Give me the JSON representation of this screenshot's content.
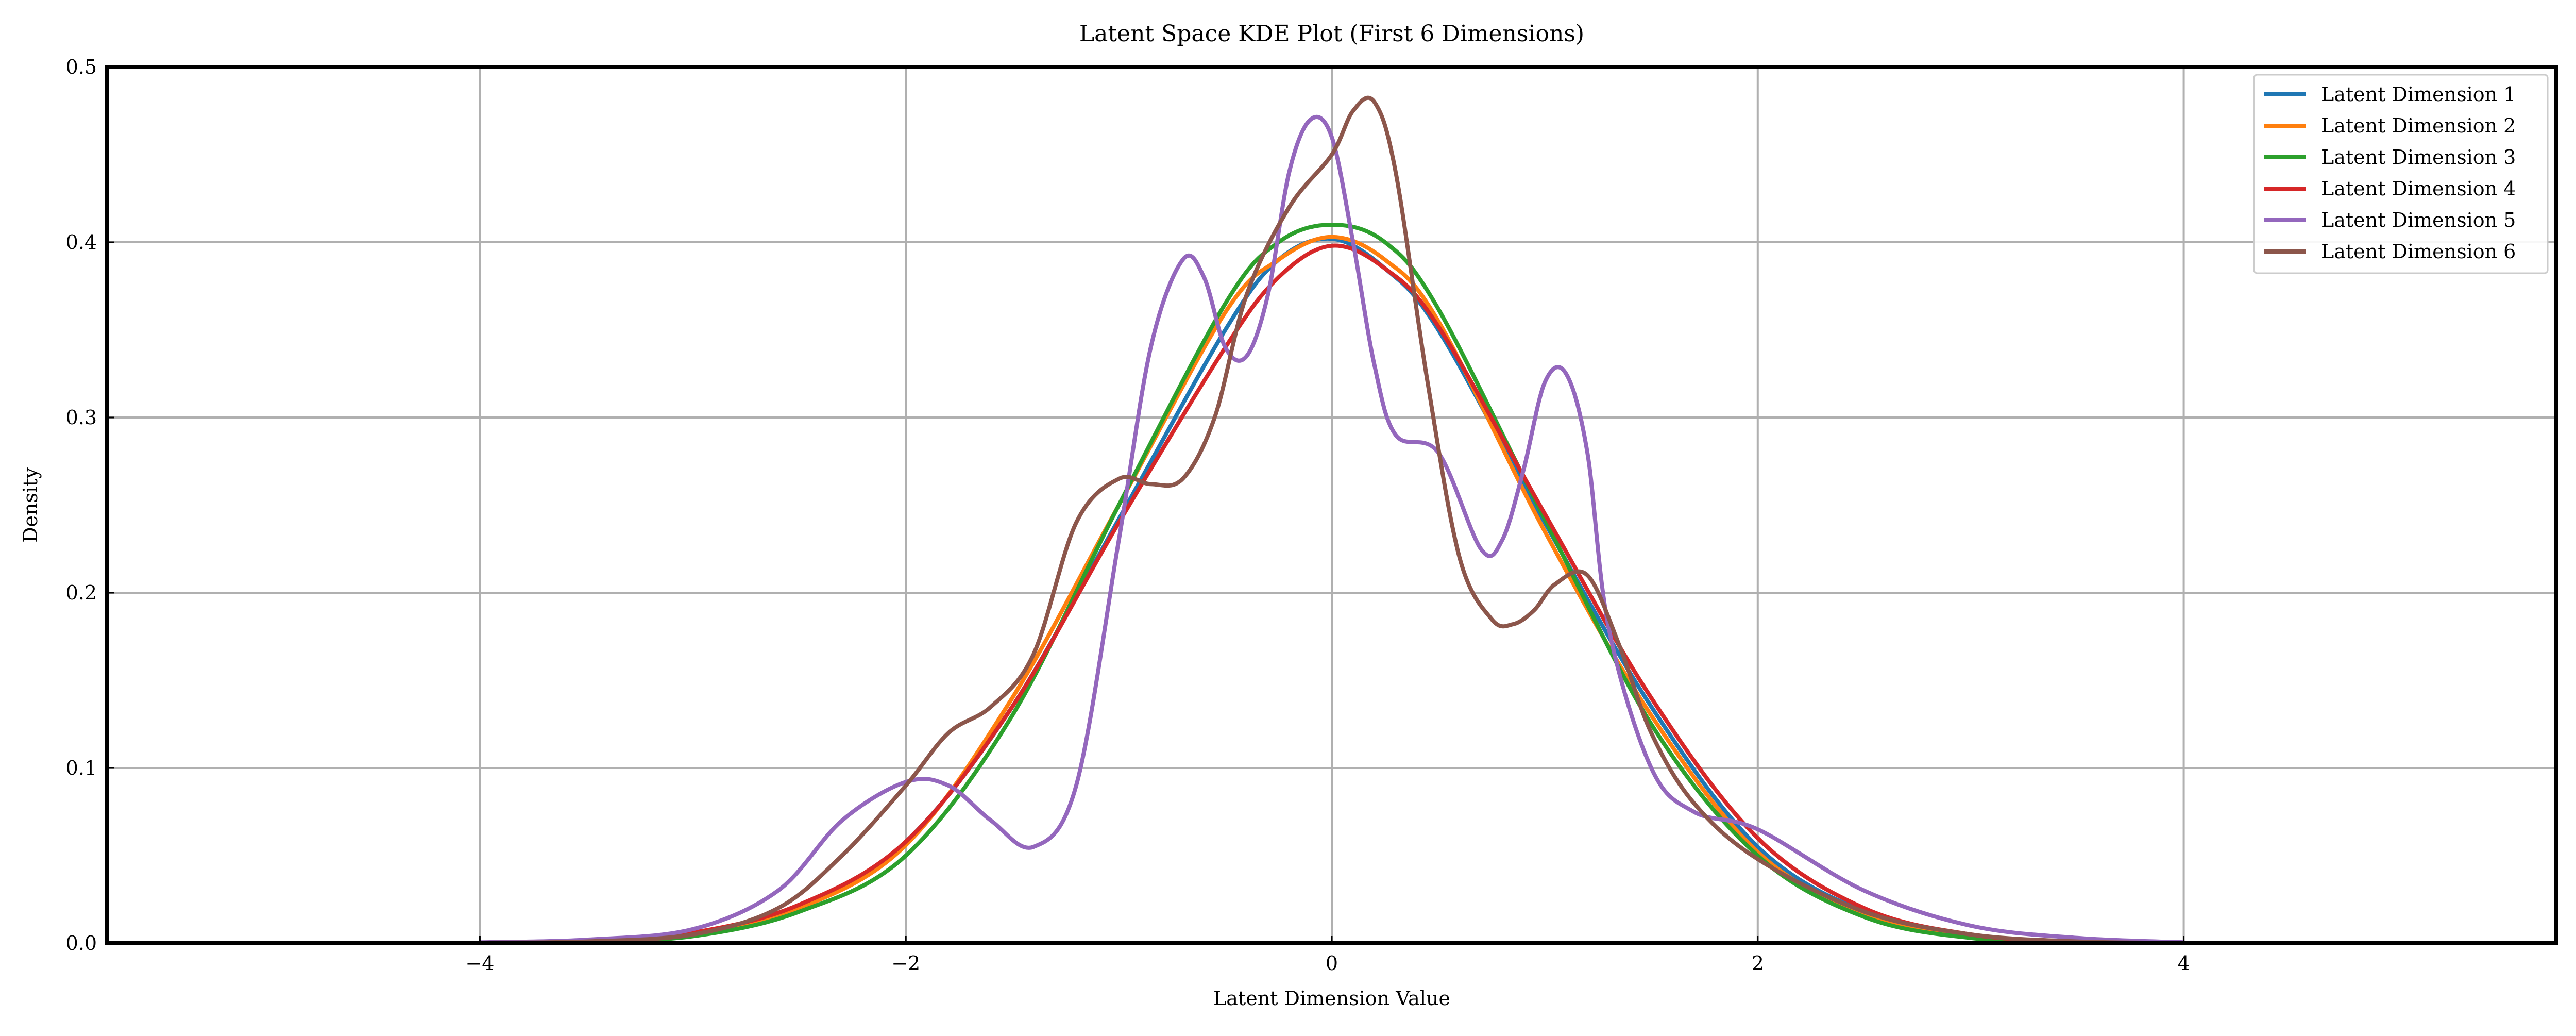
{
  "chart_data": {
    "type": "line",
    "title": "Latent Space KDE Plot (First 6 Dimensions)",
    "xlabel": "Latent Dimension Value",
    "ylabel": "Density",
    "xlim": [
      -5.75,
      5.75
    ],
    "ylim": [
      0,
      0.5
    ],
    "xticks": [
      -4,
      -2,
      0,
      2,
      4
    ],
    "xtick_labels": [
      "−4",
      "−2",
      "0",
      "2",
      "4"
    ],
    "yticks": [
      0,
      0.1,
      0.2,
      0.3,
      0.4,
      0.5
    ],
    "ytick_labels": [
      "0.0",
      "0.1",
      "0.2",
      "0.3",
      "0.4",
      "0.5"
    ],
    "grid": true,
    "legend_position": "top-right",
    "series": [
      {
        "name": "Latent Dimension 1",
        "color": "#1f77b4",
        "x": [
          -4,
          -3.5,
          -3,
          -2.5,
          -2,
          -1.5,
          -1,
          -0.5,
          -0.25,
          0,
          0.25,
          0.5,
          1,
          1.5,
          2,
          2.5,
          3,
          3.5,
          4
        ],
        "y": [
          0.0002,
          0.001,
          0.005,
          0.02,
          0.058,
          0.135,
          0.242,
          0.35,
          0.39,
          0.402,
          0.385,
          0.35,
          0.24,
          0.135,
          0.055,
          0.018,
          0.004,
          0.0008,
          0.0001
        ]
      },
      {
        "name": "Latent Dimension 2",
        "color": "#ff7f0e",
        "x": [
          -4,
          -3.5,
          -3,
          -2.5,
          -2,
          -1.5,
          -1,
          -0.5,
          -0.25,
          0,
          0.25,
          0.5,
          1,
          1.5,
          2,
          2.5,
          3,
          3.5,
          4
        ],
        "y": [
          0.0002,
          0.001,
          0.005,
          0.02,
          0.056,
          0.14,
          0.25,
          0.36,
          0.39,
          0.403,
          0.39,
          0.355,
          0.235,
          0.13,
          0.052,
          0.017,
          0.004,
          0.0008,
          0.0001
        ]
      },
      {
        "name": "Latent Dimension 3",
        "color": "#2ca02c",
        "x": [
          -4,
          -3.5,
          -3,
          -2.5,
          -2,
          -1.5,
          -1,
          -0.5,
          -0.25,
          0,
          0.25,
          0.5,
          1,
          1.5,
          2,
          2.5,
          3,
          3.5,
          4
        ],
        "y": [
          0.0002,
          0.001,
          0.004,
          0.018,
          0.05,
          0.13,
          0.25,
          0.365,
          0.4,
          0.41,
          0.4,
          0.362,
          0.242,
          0.125,
          0.05,
          0.015,
          0.003,
          0.0006,
          0.0001
        ]
      },
      {
        "name": "Latent Dimension 4",
        "color": "#d62728",
        "x": [
          -4,
          -3.5,
          -3,
          -2.5,
          -2,
          -1.5,
          -1,
          -0.5,
          -0.25,
          0,
          0.25,
          0.5,
          1,
          1.5,
          2,
          2.5,
          3,
          3.5,
          4
        ],
        "y": [
          0.0002,
          0.001,
          0.006,
          0.022,
          0.058,
          0.135,
          0.24,
          0.34,
          0.38,
          0.398,
          0.385,
          0.352,
          0.245,
          0.14,
          0.06,
          0.02,
          0.005,
          0.001,
          0.0002
        ]
      },
      {
        "name": "Latent Dimension 5",
        "color": "#9467bd",
        "x": [
          -4,
          -3.5,
          -3,
          -2.6,
          -2.3,
          -2,
          -1.8,
          -1.6,
          -1.4,
          -1.2,
          -1,
          -0.85,
          -0.7,
          -0.6,
          -0.5,
          -0.4,
          -0.3,
          -0.2,
          -0.1,
          0,
          0.1,
          0.2,
          0.3,
          0.5,
          0.7,
          0.8,
          0.9,
          1,
          1.1,
          1.2,
          1.3,
          1.5,
          1.7,
          2,
          2.5,
          3,
          3.5,
          4
        ],
        "y": [
          0.0005,
          0.002,
          0.008,
          0.03,
          0.07,
          0.092,
          0.09,
          0.07,
          0.055,
          0.09,
          0.23,
          0.34,
          0.39,
          0.38,
          0.34,
          0.335,
          0.37,
          0.44,
          0.47,
          0.46,
          0.4,
          0.33,
          0.29,
          0.28,
          0.225,
          0.23,
          0.27,
          0.32,
          0.325,
          0.28,
          0.18,
          0.1,
          0.075,
          0.065,
          0.03,
          0.01,
          0.003,
          0.0005
        ]
      },
      {
        "name": "Latent Dimension 6",
        "color": "#8c564b",
        "x": [
          -4,
          -3.5,
          -3,
          -2.6,
          -2.3,
          -2,
          -1.8,
          -1.6,
          -1.4,
          -1.2,
          -1,
          -0.85,
          -0.7,
          -0.55,
          -0.4,
          -0.2,
          0,
          0.1,
          0.2,
          0.3,
          0.45,
          0.6,
          0.75,
          0.85,
          0.95,
          1.05,
          1.2,
          1.35,
          1.5,
          1.7,
          2,
          2.5,
          3,
          3.5,
          4
        ],
        "y": [
          0.0003,
          0.001,
          0.005,
          0.02,
          0.05,
          0.09,
          0.12,
          0.135,
          0.165,
          0.24,
          0.265,
          0.262,
          0.265,
          0.3,
          0.37,
          0.42,
          0.45,
          0.475,
          0.48,
          0.44,
          0.32,
          0.22,
          0.185,
          0.182,
          0.19,
          0.205,
          0.21,
          0.17,
          0.12,
          0.08,
          0.048,
          0.018,
          0.005,
          0.001,
          0.0002
        ]
      }
    ]
  }
}
